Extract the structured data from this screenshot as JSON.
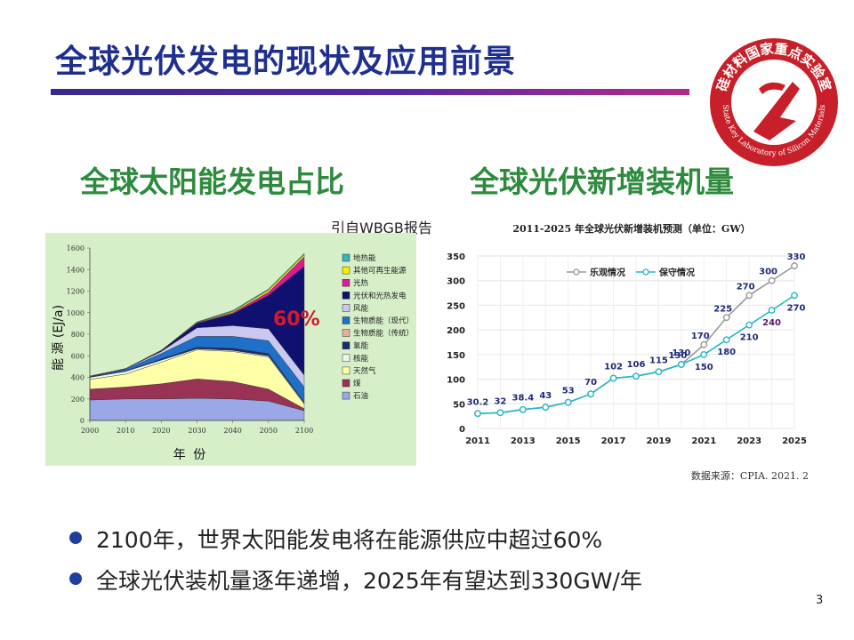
{
  "title": "全球光伏发电的现状及应用前景",
  "logo": {
    "name_cn": "硅材料国家重点实验室",
    "name_en": "State Key Laboratory of Silicon Materials",
    "colors": {
      "ring": "#c8202a",
      "inner": "#ffffff"
    }
  },
  "left_section": {
    "heading": "全球太阳能发电占比",
    "source_note": "引自WBGB报告"
  },
  "right_section": {
    "heading": "全球光伏新增装机量"
  },
  "bullets": [
    "2100年，世界太阳能发电将在能源供应中超过60%",
    "全球光伏装机量逐年递增，2025年有望达到330GW/年"
  ],
  "page_number": "3",
  "chart_data": [
    {
      "type": "area",
      "title": "",
      "xlabel": "年 份",
      "ylabel": "能 源 (EJ/a)",
      "x": [
        2000,
        2010,
        2020,
        2030,
        2040,
        2050,
        2100
      ],
      "x_ticks": [
        "2000",
        "2010",
        "2020",
        "2030",
        "2040",
        "2050",
        "2100"
      ],
      "y_ticks": [
        "0",
        "200",
        "400",
        "600",
        "800",
        "1000",
        "1200",
        "1400",
        "1600"
      ],
      "ylim": [
        0,
        1600
      ],
      "annotation": "60%",
      "legend": "right",
      "series": [
        {
          "name": "石油",
          "color": "#9aa8e8",
          "values": [
            190,
            200,
            200,
            205,
            200,
            180,
            90
          ]
        },
        {
          "name": "煤",
          "color": "#993355",
          "values": [
            100,
            110,
            140,
            180,
            160,
            110,
            20
          ]
        },
        {
          "name": "天然气",
          "color": "#ffffa8",
          "values": [
            90,
            120,
            200,
            270,
            280,
            300,
            40
          ]
        },
        {
          "name": "核能",
          "color": "#eef6ee",
          "values": [
            20,
            25,
            20,
            10,
            10,
            10,
            10
          ]
        },
        {
          "name": "氢能",
          "color": "#1c2a6e",
          "values": [
            5,
            5,
            10,
            15,
            20,
            20,
            10
          ]
        },
        {
          "name": "生物质能（传统）",
          "color": "#e8b09a",
          "values": [
            0,
            0,
            0,
            0,
            0,
            0,
            0
          ]
        },
        {
          "name": "生物质能（现代）",
          "color": "#1f70c8",
          "values": [
            5,
            15,
            50,
            100,
            110,
            120,
            140
          ]
        },
        {
          "name": "风能",
          "color": "#c8c8f0",
          "values": [
            0,
            5,
            20,
            80,
            100,
            110,
            110
          ]
        },
        {
          "name": "光伏和光热发电",
          "color": "#101070",
          "values": [
            0,
            0,
            10,
            40,
            110,
            310,
            1010
          ]
        },
        {
          "name": "光热",
          "color": "#e0189a",
          "values": [
            0,
            0,
            0,
            5,
            10,
            30,
            90
          ]
        },
        {
          "name": "其他可再生能源",
          "color": "#f2f200",
          "values": [
            0,
            0,
            0,
            5,
            10,
            20,
            20
          ]
        },
        {
          "name": "地热能",
          "color": "#30b8b8",
          "values": [
            0,
            0,
            0,
            5,
            10,
            10,
            10
          ]
        }
      ]
    },
    {
      "type": "line",
      "title": "2011-2025 年全球光伏新增装机预测（单位：GW）",
      "source": "数据来源：CPIA. 2021. 2",
      "x": [
        2011,
        2012,
        2013,
        2014,
        2015,
        2016,
        2017,
        2018,
        2019,
        2020,
        2021,
        2022,
        2023,
        2024,
        2025
      ],
      "x_ticks": [
        "2011",
        "2013",
        "2015",
        "2017",
        "2019",
        "2021",
        "2023",
        "2025"
      ],
      "y_ticks": [
        "0",
        "50",
        "100",
        "150",
        "200",
        "250",
        "300",
        "350"
      ],
      "ylim": [
        0,
        350
      ],
      "legend": "top-left",
      "series": [
        {
          "name": "乐观情况",
          "color": "#999999",
          "values": [
            30.2,
            32,
            38.4,
            43,
            53,
            70,
            102,
            106,
            115,
            130,
            170,
            225,
            270,
            300,
            330
          ],
          "labels": [
            null,
            null,
            null,
            null,
            null,
            null,
            null,
            null,
            null,
            "130",
            "170",
            "225",
            "270",
            "300",
            "330"
          ]
        },
        {
          "name": "保守情况",
          "color": "#23b8c8",
          "values": [
            30.2,
            32,
            38.4,
            43,
            53,
            70,
            102,
            106,
            115,
            130,
            150,
            180,
            210,
            240,
            270
          ],
          "labels": [
            "30.2",
            "32",
            "38.4",
            "43",
            "53",
            "70",
            "102",
            "106",
            "115",
            "130",
            "150",
            "180",
            "210",
            "240",
            "270"
          ]
        }
      ]
    }
  ]
}
